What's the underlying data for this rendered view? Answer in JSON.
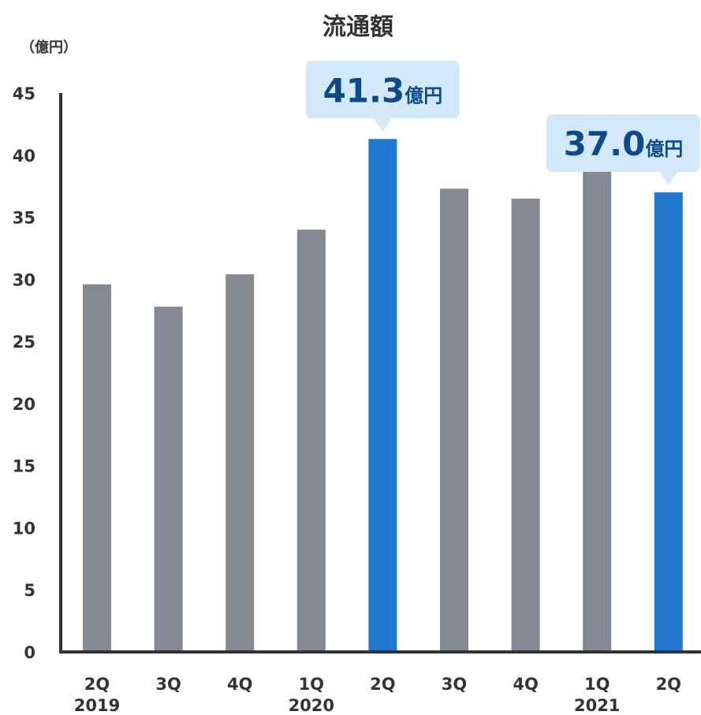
{
  "chart_data": {
    "type": "bar",
    "title": "流通額",
    "ylabel": "（億円）",
    "xlabel": "",
    "ylim": [
      0,
      45
    ],
    "yticks": [
      "0",
      "5",
      "10",
      "15",
      "20",
      "25",
      "30",
      "35",
      "40",
      "45"
    ],
    "categories": [
      "2Q",
      "3Q",
      "4Q",
      "1Q",
      "2Q",
      "3Q",
      "4Q",
      "1Q",
      "2Q"
    ],
    "year_labels": [
      "2019",
      "",
      "",
      "2020",
      "",
      "",
      "",
      "2021",
      ""
    ],
    "values": [
      29.6,
      27.8,
      30.4,
      34.0,
      41.3,
      37.3,
      36.5,
      39.8,
      37.0
    ],
    "highlight": [
      false,
      false,
      false,
      false,
      true,
      false,
      false,
      false,
      true
    ],
    "callouts": [
      {
        "index": 4,
        "value": "41.3",
        "unit": "億円"
      },
      {
        "index": 8,
        "value": "37.0",
        "unit": "億円"
      }
    ],
    "grid": false,
    "legend": "none",
    "colors": {
      "bar": "#838a94",
      "highlight": "#2079cf",
      "callout_bg": "#d3e8f8",
      "callout_text": "#0c4a8a",
      "axis": "#333333"
    }
  }
}
